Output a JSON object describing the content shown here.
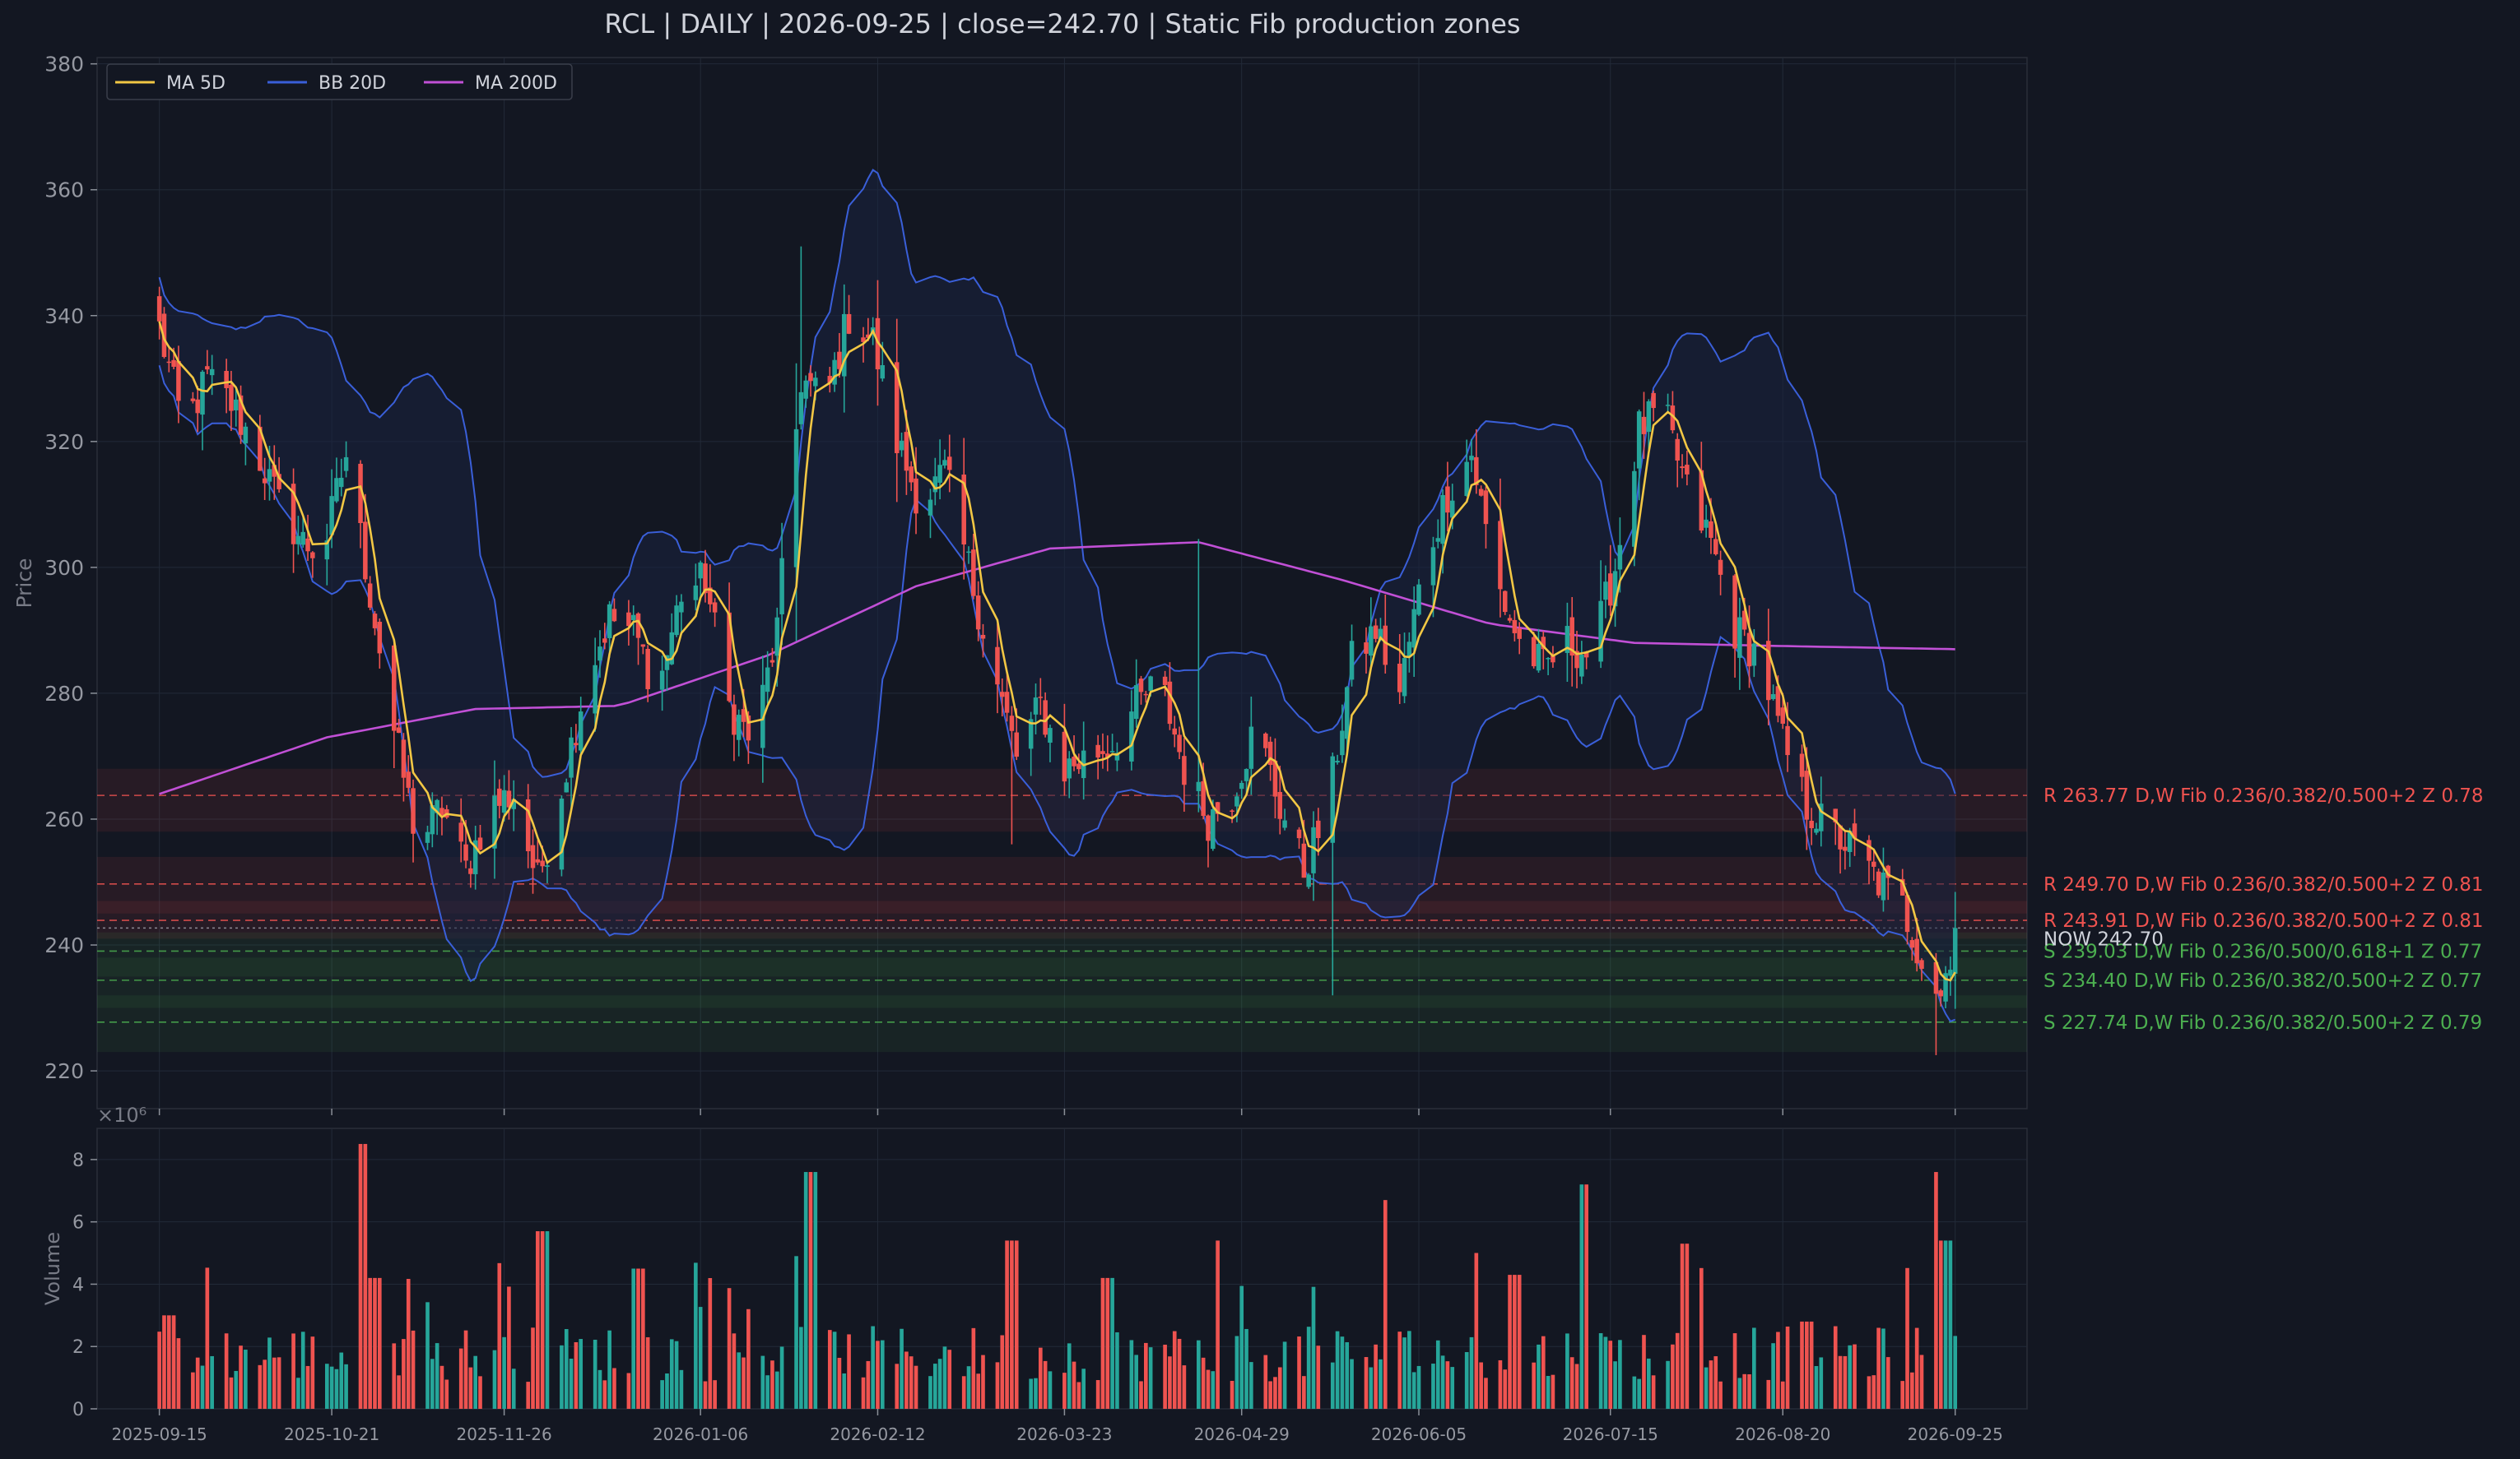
{
  "chart_data": [
    {
      "type": "candlestick",
      "panel": "price",
      "title": "RCL  |  DAILY  |  2026-09-25  |  close=242.70  |  Static Fib production zones",
      "ylabel": "Price",
      "ylim": [
        214,
        381
      ],
      "yticks": [
        220,
        240,
        260,
        280,
        300,
        320,
        340,
        360,
        380
      ],
      "x_range": [
        "2025-09-02",
        "2026-10-10"
      ],
      "grid": true,
      "legend_placement": "top-left",
      "legend": [
        {
          "label": "MA 5D",
          "color": "#f2c744"
        },
        {
          "label": "BB 20D",
          "color": "#3a5fd9"
        },
        {
          "label": "MA 200D",
          "color": "#c150d6"
        }
      ],
      "colors": {
        "up": "#26a69a",
        "down": "#ef5350",
        "background": "#131722",
        "grid": "#222a38",
        "bb_fill": "#1a2340"
      },
      "price_keyframes": [
        [
          "2025-09-15",
          338
        ],
        [
          "2025-09-20",
          322
        ],
        [
          "2025-09-25",
          330
        ],
        [
          "2025-09-30",
          326
        ],
        [
          "2025-10-05",
          319
        ],
        [
          "2025-10-10",
          310
        ],
        [
          "2025-10-15",
          304
        ],
        [
          "2025-10-19",
          302
        ],
        [
          "2025-10-24",
          318
        ],
        [
          "2025-10-29",
          296
        ],
        [
          "2025-11-03",
          274
        ],
        [
          "2025-11-08",
          256
        ],
        [
          "2025-11-13",
          262
        ],
        [
          "2025-11-18",
          252
        ],
        [
          "2025-11-23",
          262
        ],
        [
          "2025-11-28",
          264
        ],
        [
          "2025-12-03",
          250
        ],
        [
          "2025-12-08",
          265
        ],
        [
          "2025-12-13",
          282
        ],
        [
          "2025-12-18",
          292
        ],
        [
          "2025-12-23",
          290
        ],
        [
          "2025-12-28",
          280
        ],
        [
          "2026-01-02",
          296
        ],
        [
          "2026-01-07",
          298
        ],
        [
          "2026-01-12",
          278
        ],
        [
          "2026-01-17",
          272
        ],
        [
          "2026-01-22",
          290
        ],
        [
          "2026-01-27",
          330
        ],
        [
          "2026-02-01",
          326
        ],
        [
          "2026-02-06",
          340
        ],
        [
          "2026-02-11",
          336
        ],
        [
          "2026-02-16",
          320
        ],
        [
          "2026-02-21",
          310
        ],
        [
          "2026-02-26",
          315
        ],
        [
          "2026-03-03",
          300
        ],
        [
          "2026-03-08",
          284
        ],
        [
          "2026-03-13",
          270
        ],
        [
          "2026-03-18",
          278
        ],
        [
          "2026-03-23",
          268
        ],
        [
          "2026-03-28",
          270
        ],
        [
          "2026-04-02",
          272
        ],
        [
          "2026-04-07",
          278
        ],
        [
          "2026-04-12",
          282
        ],
        [
          "2026-04-17",
          268
        ],
        [
          "2026-04-22",
          260
        ],
        [
          "2026-04-27",
          264
        ],
        [
          "2026-05-02",
          275
        ],
        [
          "2026-05-07",
          262
        ],
        [
          "2026-05-12",
          252
        ],
        [
          "2026-05-17",
          262
        ],
        [
          "2026-05-22",
          285
        ],
        [
          "2026-05-27",
          290
        ],
        [
          "2026-06-01",
          280
        ],
        [
          "2026-06-06",
          300
        ],
        [
          "2026-06-11",
          312
        ],
        [
          "2026-06-16",
          318
        ],
        [
          "2026-06-21",
          298
        ],
        [
          "2026-06-26",
          288
        ],
        [
          "2026-07-01",
          284
        ],
        [
          "2026-07-06",
          288
        ],
        [
          "2026-07-11",
          286
        ],
        [
          "2026-07-16",
          300
        ],
        [
          "2026-07-21",
          322
        ],
        [
          "2026-07-26",
          325
        ],
        [
          "2026-07-31",
          312
        ],
        [
          "2026-08-05",
          304
        ],
        [
          "2026-08-10",
          290
        ],
        [
          "2026-08-15",
          286
        ],
        [
          "2026-08-20",
          272
        ],
        [
          "2026-08-25",
          262
        ],
        [
          "2026-08-30",
          258
        ],
        [
          "2026-09-04",
          255
        ],
        [
          "2026-09-09",
          250
        ],
        [
          "2026-09-14",
          246
        ],
        [
          "2026-09-19",
          236
        ],
        [
          "2026-09-22",
          232
        ],
        [
          "2026-09-25",
          242.7
        ]
      ],
      "ma200_keyframes": [
        [
          "2025-09-15",
          264
        ],
        [
          "2025-10-20",
          273
        ],
        [
          "2025-11-20",
          277.5
        ],
        [
          "2025-12-20",
          278
        ],
        [
          "2026-01-20",
          286
        ],
        [
          "2026-02-20",
          297
        ],
        [
          "2026-03-20",
          303
        ],
        [
          "2026-04-20",
          304
        ],
        [
          "2026-05-20",
          298
        ],
        [
          "2026-06-20",
          291
        ],
        [
          "2026-07-20",
          288
        ],
        [
          "2026-08-20",
          287.5
        ],
        [
          "2026-09-25",
          287
        ]
      ],
      "zones": [
        {
          "kind": "R",
          "price": 263.77,
          "low": 258,
          "high": 268,
          "label": "R 263.77  D,W  Fib 0.236/0.382/0.500+2  Z 0.78",
          "color": "#ef5350"
        },
        {
          "kind": "R",
          "price": 249.7,
          "low": 245,
          "high": 254,
          "label": "R 249.70  D,W  Fib 0.236/0.382/0.500+2  Z 0.81",
          "color": "#ef5350"
        },
        {
          "kind": "R",
          "price": 243.91,
          "low": 241,
          "high": 247,
          "label": "R 243.91  D,W  Fib 0.236/0.382/0.500+2  Z 0.81",
          "color": "#ef5350"
        },
        {
          "kind": "S",
          "price": 239.03,
          "low": 235,
          "high": 242,
          "label": "S 239.03  D,W  Fib 0.236/0.500/0.618+1  Z 0.77",
          "color": "#4caf50"
        },
        {
          "kind": "S",
          "price": 234.4,
          "low": 230,
          "high": 238,
          "label": "S 234.40  D,W  Fib 0.236/0.382/0.500+2  Z 0.77",
          "color": "#4caf50"
        },
        {
          "kind": "S",
          "price": 227.74,
          "low": 223,
          "high": 232,
          "label": "S 227.74  D,W  Fib 0.236/0.382/0.500+2  Z 0.79",
          "color": "#4caf50"
        }
      ],
      "now": {
        "price": 242.7,
        "label": "NOW 242.70",
        "color": "#d0d4dc"
      }
    },
    {
      "type": "bar",
      "panel": "volume",
      "ylabel": "Volume",
      "offset_label": "×10⁶",
      "ylim": [
        0,
        9
      ],
      "yticks": [
        0,
        2,
        4,
        6,
        8
      ],
      "xticks": [
        "2025-09-15",
        "2025-10-21",
        "2025-11-26",
        "2026-01-06",
        "2026-02-12",
        "2026-03-23",
        "2026-04-29",
        "2026-06-05",
        "2026-07-15",
        "2026-08-20",
        "2026-09-25"
      ],
      "base_volume_millions": 1.9,
      "spikes_millions": [
        [
          "2025-09-17",
          3.0
        ],
        [
          "2025-10-28",
          8.5
        ],
        [
          "2025-10-30",
          4.2
        ],
        [
          "2025-12-04",
          5.7
        ],
        [
          "2025-12-24",
          4.5
        ],
        [
          "2026-01-29",
          7.6
        ],
        [
          "2026-03-12",
          5.4
        ],
        [
          "2026-04-01",
          4.2
        ],
        [
          "2026-04-25",
          5.4
        ],
        [
          "2026-05-30",
          6.7
        ],
        [
          "2026-06-25",
          4.3
        ],
        [
          "2026-07-10",
          7.2
        ],
        [
          "2026-07-31",
          5.3
        ],
        [
          "2026-08-25",
          2.8
        ],
        [
          "2026-09-21",
          8.3
        ],
        [
          "2026-09-22",
          7.6
        ],
        [
          "2026-09-23",
          5.4
        ]
      ]
    }
  ]
}
